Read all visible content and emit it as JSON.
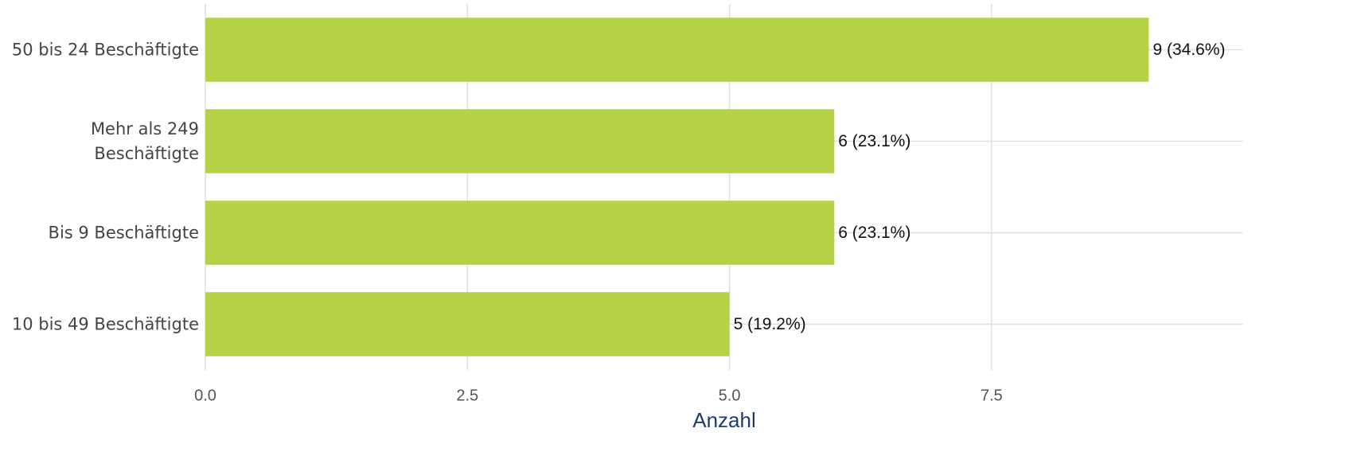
{
  "chart_data": {
    "type": "bar",
    "orientation": "horizontal",
    "categories": [
      "50 bis 24 Beschäftigte",
      "Mehr als 249\nBeschäftigte",
      "Bis 9 Beschäftigte",
      "10 bis 49 Beschäftigte"
    ],
    "values": [
      9,
      6,
      6,
      5
    ],
    "value_labels": [
      "9 (34.6%)",
      "6 (23.1%)",
      "6 (23.1%)",
      "5 (19.2%)"
    ],
    "color": "#b5d248",
    "x_label": "Anzahl",
    "xlim": [
      0,
      9.9
    ],
    "xticks": [
      {
        "value": 0,
        "label": "0.0"
      },
      2.5,
      {
        "value": 5,
        "label": "5.0"
      },
      7.5
    ],
    "grid": true
  }
}
